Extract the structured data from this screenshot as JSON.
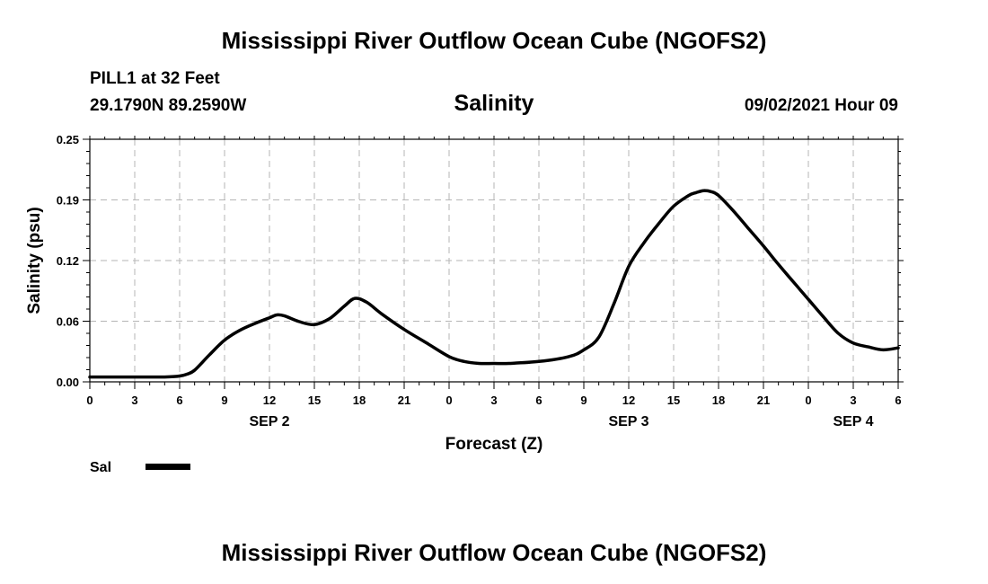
{
  "header": {
    "title": "Mississippi River Outflow Ocean Cube (NGOFS2)",
    "station": "PILL1 at 32 Feet",
    "coords": "29.1790N  89.2590W",
    "variable": "Salinity",
    "datetime": "09/02/2021 Hour 09"
  },
  "footer": {
    "title": "Mississippi River Outflow Ocean Cube (NGOFS2)"
  },
  "chart_data": {
    "type": "line",
    "title": "Salinity",
    "xlabel": "Forecast (Z)",
    "ylabel": "Salinity (psu)",
    "xlim": [
      0,
      54
    ],
    "ylim": [
      0,
      0.25
    ],
    "yticks": [
      "0.00",
      "0.06",
      "0.12",
      "0.19",
      "0.25"
    ],
    "ytick_values": [
      0,
      0.0625,
      0.125,
      0.1875,
      0.25
    ],
    "xticks": [
      "0",
      "3",
      "6",
      "9",
      "12",
      "15",
      "18",
      "21",
      "0",
      "3",
      "6",
      "9",
      "12",
      "15",
      "18",
      "21",
      "0",
      "3",
      "6"
    ],
    "date_labels": [
      {
        "label": "SEP 2",
        "hour": 12
      },
      {
        "label": "SEP 3",
        "hour": 36
      },
      {
        "label": "SEP 4",
        "hour": 51
      }
    ],
    "grid": true,
    "legend": {
      "position": "bottom-left",
      "entries": [
        {
          "name": "Sal",
          "color": "#000000"
        }
      ]
    },
    "series": [
      {
        "name": "Sal",
        "color": "#000000",
        "x": [
          0,
          2,
          4,
          5,
          6,
          6.5,
          7,
          8,
          9,
          10,
          11,
          12,
          12.5,
          13,
          14,
          15,
          16,
          17,
          17.7,
          18.5,
          19.5,
          21,
          22.5,
          24,
          25,
          26,
          27,
          28,
          30,
          32,
          33,
          34,
          35,
          36,
          37,
          38,
          39,
          40,
          40.5,
          41,
          41.5,
          42,
          43,
          44,
          45,
          46,
          47,
          48,
          49,
          50,
          51,
          52,
          53,
          54
        ],
        "y": [
          0.005,
          0.005,
          0.005,
          0.005,
          0.006,
          0.008,
          0.012,
          0.028,
          0.043,
          0.053,
          0.06,
          0.066,
          0.069,
          0.068,
          0.062,
          0.059,
          0.065,
          0.078,
          0.086,
          0.082,
          0.07,
          0.054,
          0.04,
          0.026,
          0.021,
          0.019,
          0.019,
          0.019,
          0.021,
          0.026,
          0.033,
          0.046,
          0.08,
          0.119,
          0.143,
          0.163,
          0.181,
          0.192,
          0.195,
          0.197,
          0.196,
          0.192,
          0.176,
          0.158,
          0.14,
          0.121,
          0.103,
          0.085,
          0.067,
          0.05,
          0.04,
          0.036,
          0.033,
          0.035
        ]
      }
    ]
  }
}
